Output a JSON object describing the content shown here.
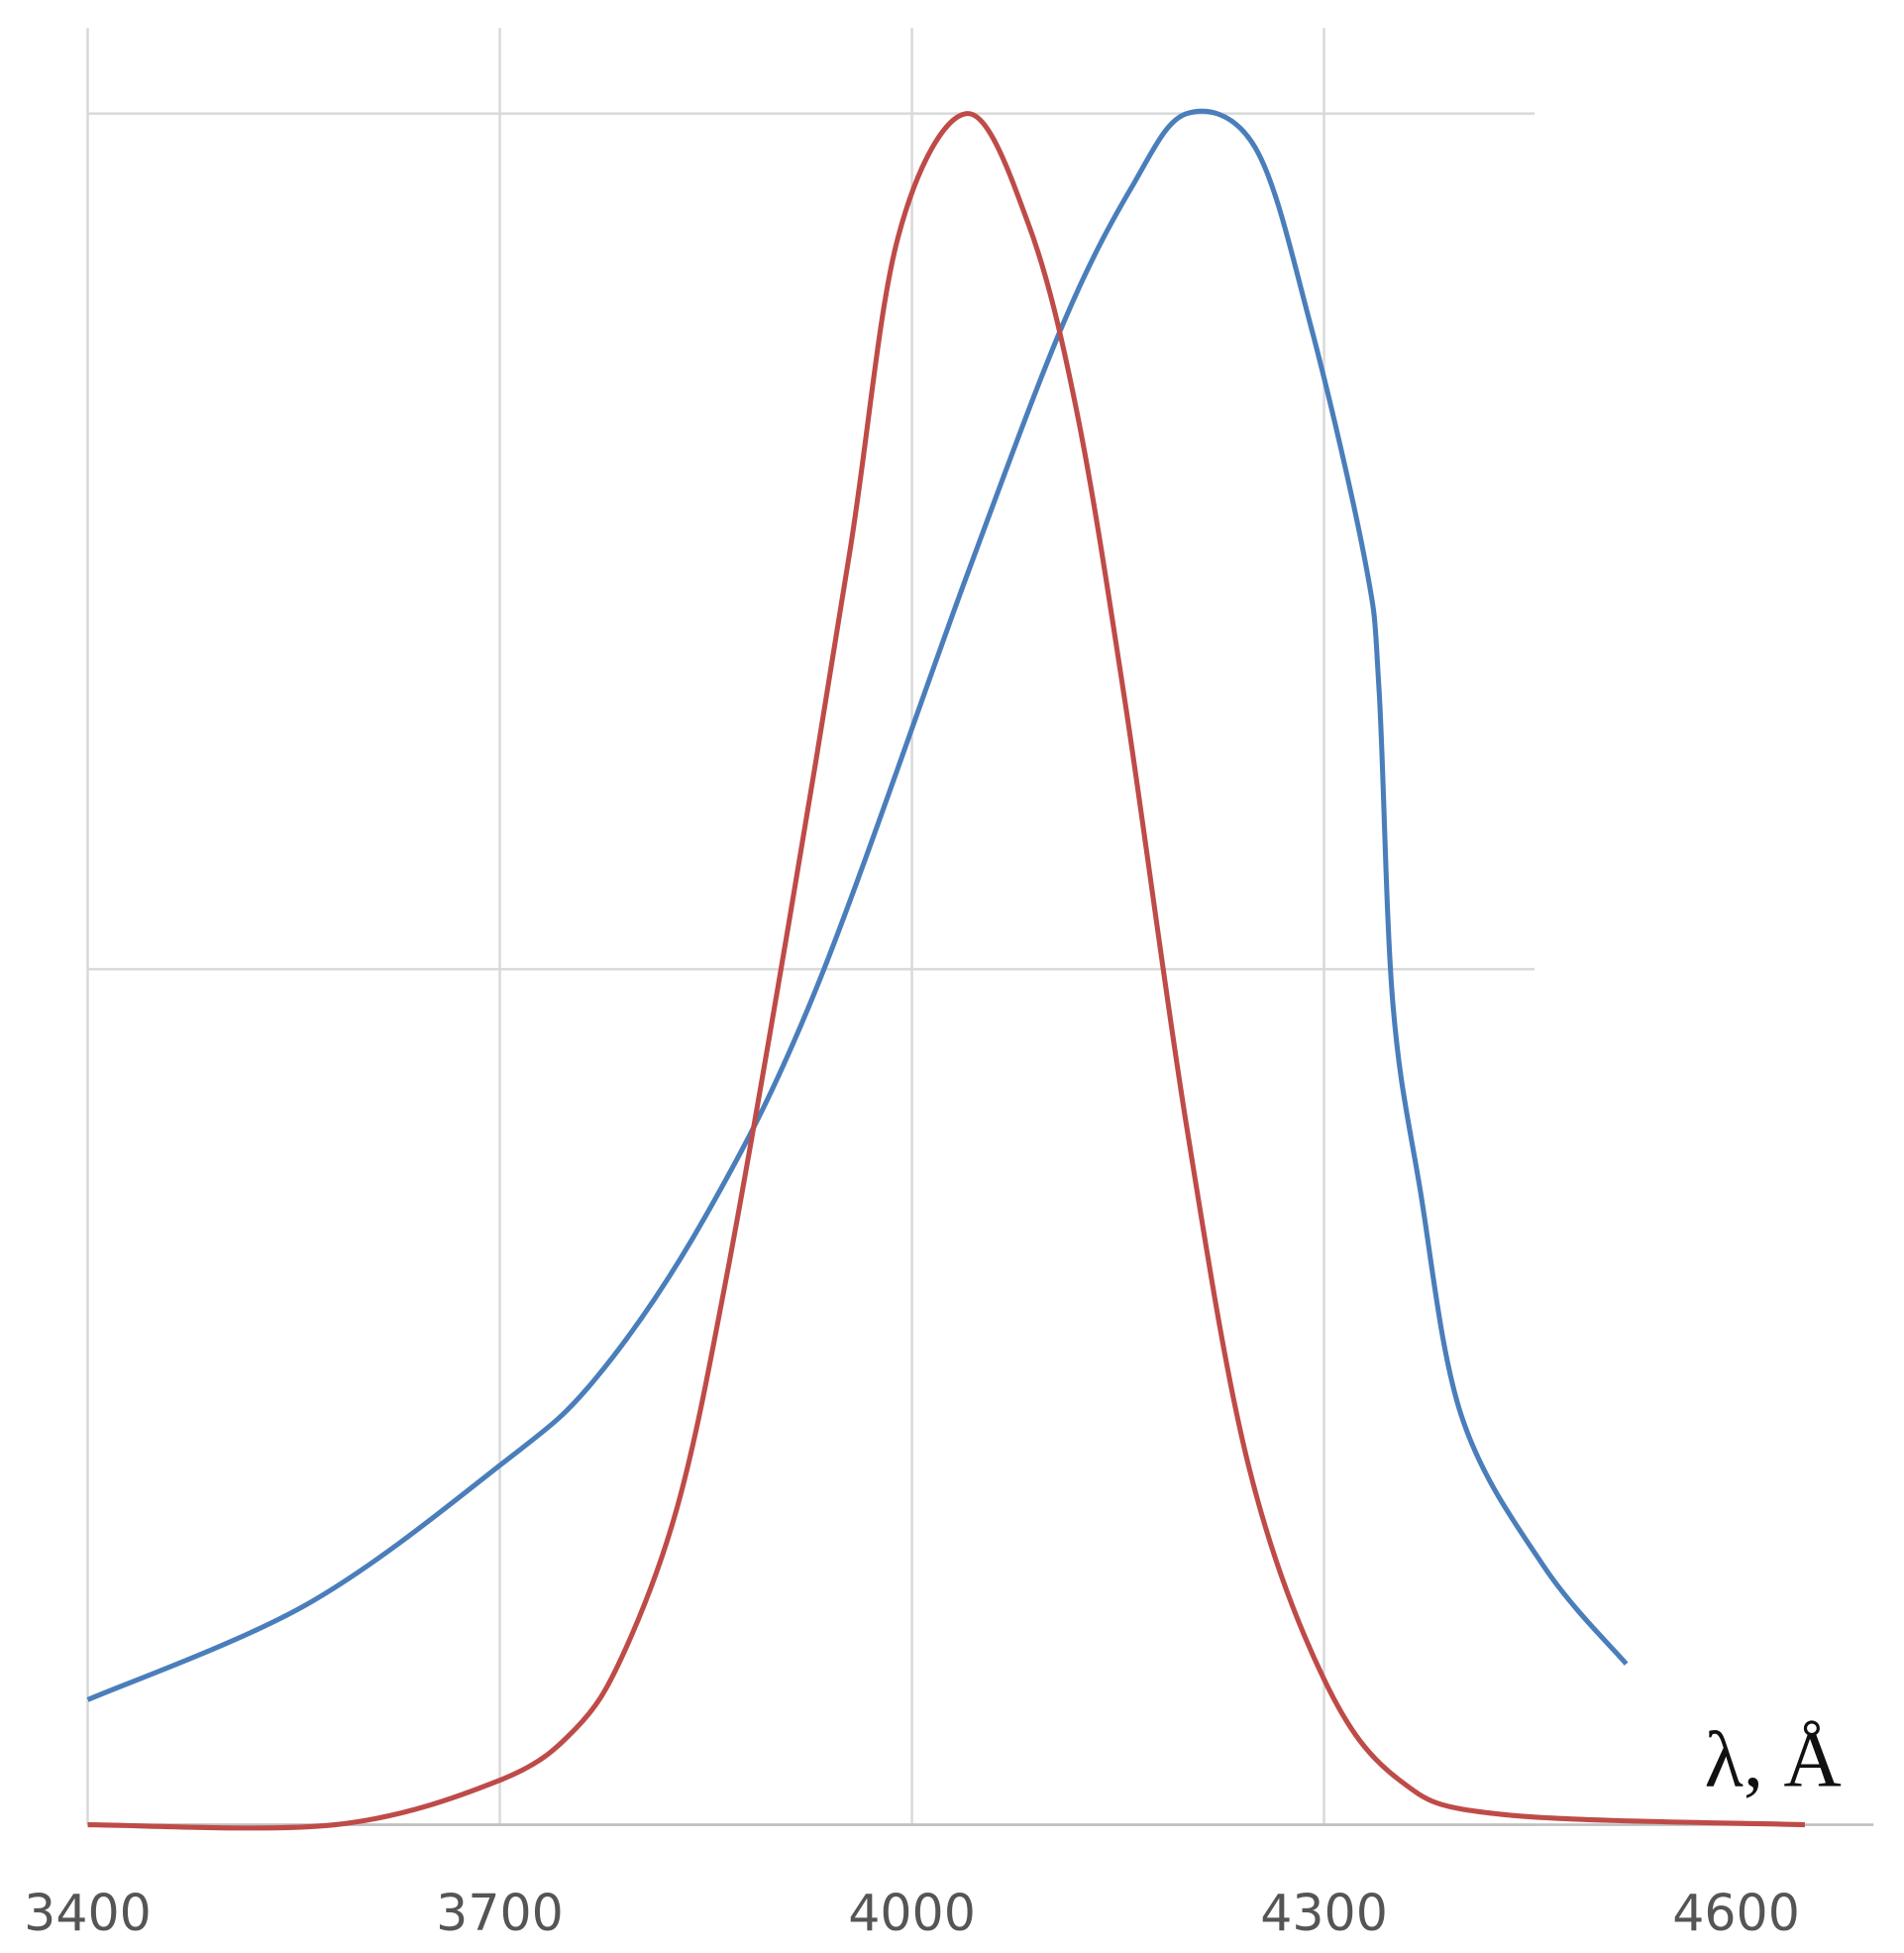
{
  "chart_data": {
    "type": "line",
    "axis_label": "λ, Å",
    "xlim": [
      3400,
      4700
    ],
    "xticks": [
      3400,
      3700,
      4000,
      4300,
      4600
    ],
    "xgrid": [
      3400,
      3700,
      4000,
      4300
    ],
    "ylim": [
      0,
      1.05
    ],
    "ygrid": [
      0,
      0.5,
      1
    ],
    "series": [
      {
        "color": "#4a7ebb",
        "x": [
          3400,
          3560,
          3700,
          3770,
          3850,
          3930,
          4040,
          4110,
          4160,
          4200,
          4250,
          4290,
          4330,
          4340,
          4350,
          4370,
          4400,
          4460,
          4520
        ],
        "values": [
          0.073,
          0.129,
          0.21,
          0.261,
          0.356,
          0.488,
          0.73,
          0.877,
          0.957,
          1.0,
          0.98,
          0.877,
          0.738,
          0.664,
          0.481,
          0.371,
          0.239,
          0.151,
          0.094
        ]
      },
      {
        "color": "#be4b48",
        "x": [
          3400,
          3580,
          3700,
          3755,
          3790,
          3830,
          3865,
          3910,
          3955,
          3990,
          4040,
          4085,
          4120,
          4155,
          4200,
          4245,
          4300,
          4355,
          4430,
          4650
        ],
        "values": [
          0,
          0,
          0.026,
          0.056,
          0.1,
          0.188,
          0.32,
          0.525,
          0.745,
          0.928,
          1.0,
          0.935,
          0.826,
          0.657,
          0.408,
          0.21,
          0.085,
          0.026,
          0.006,
          0
        ]
      }
    ]
  }
}
